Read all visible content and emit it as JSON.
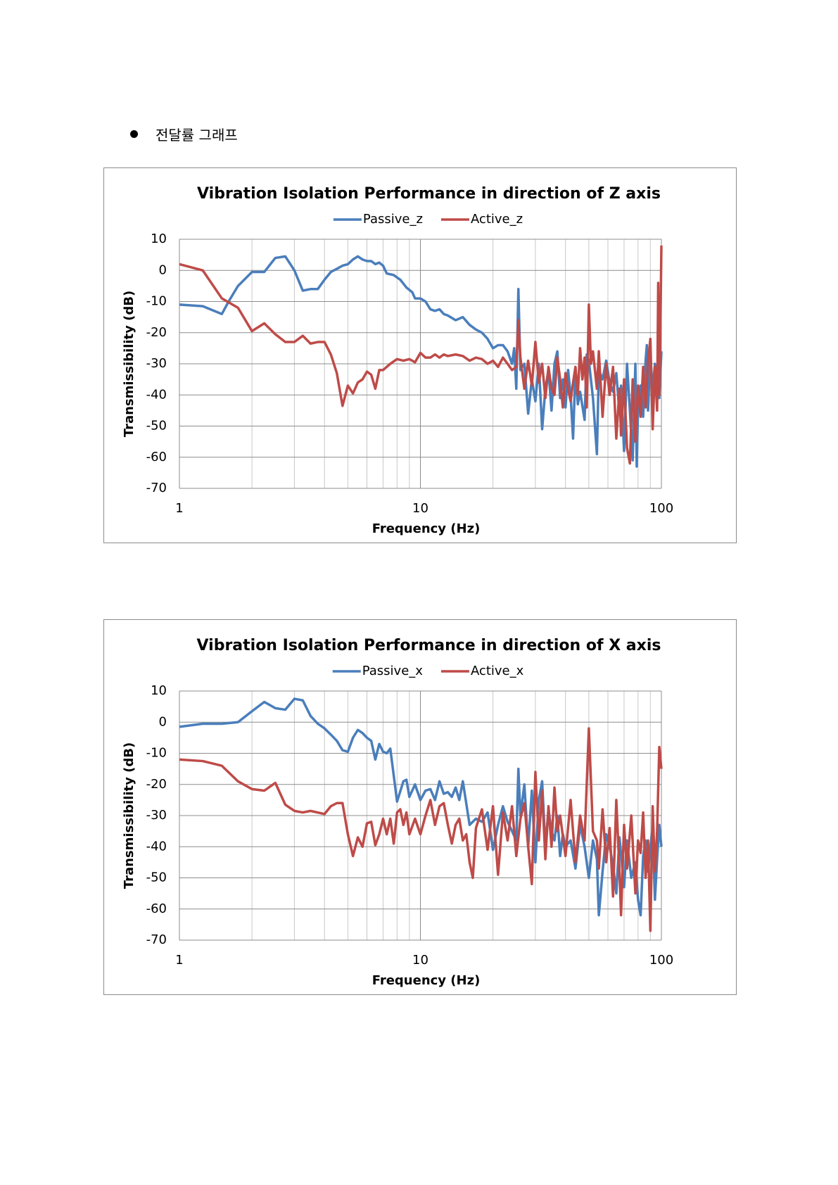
{
  "heading": "전달률 그래프",
  "chart_data": [
    {
      "type": "line",
      "title": "Vibration Isolation Performance in direction of Z axis",
      "x_label": "Frequency (Hz)",
      "y_label": "Transmissibility (dB)",
      "log_x": true,
      "grid": true,
      "minor_grid": true,
      "legend": "top",
      "xlim": [
        1,
        100
      ],
      "xticks": [
        1,
        10,
        100
      ],
      "ylim": [
        -70,
        10
      ],
      "yticks": [
        -70,
        -60,
        -50,
        -40,
        -30,
        -20,
        -10,
        0,
        10
      ],
      "series": [
        {
          "name": "Passive_z",
          "color": "#4a7ebb",
          "x": [
            1,
            1.25,
            1.5,
            1.6,
            1.75,
            2,
            2.25,
            2.5,
            2.75,
            3,
            3.25,
            3.5,
            3.75,
            4,
            4.25,
            4.5,
            4.75,
            5,
            5.25,
            5.5,
            5.75,
            6,
            6.25,
            6.5,
            6.75,
            7,
            7.25,
            7.75,
            8.25,
            8.75,
            9.25,
            9.5,
            10,
            10.5,
            11,
            11.5,
            12,
            12.5,
            13,
            14,
            15,
            16,
            17,
            18,
            19,
            20,
            21,
            22,
            23,
            24,
            24.5,
            25,
            25.5,
            26,
            27,
            28,
            29,
            30,
            31,
            32,
            33,
            34,
            35,
            36,
            37,
            38,
            39,
            40,
            41,
            42,
            43,
            44,
            45,
            46,
            48,
            49,
            50,
            52,
            54,
            55,
            57,
            59,
            61,
            63,
            65,
            67,
            68,
            70,
            72,
            74,
            76,
            78,
            79,
            80,
            82,
            84,
            86,
            87,
            88,
            90,
            92,
            94,
            96,
            98,
            100
          ],
          "values": [
            -11,
            -11.5,
            -14,
            -10,
            -5,
            -0.5,
            -0.5,
            4,
            4.5,
            0,
            -6.5,
            -6,
            -6,
            -3,
            -0.5,
            0.5,
            1.5,
            2,
            3.5,
            4.5,
            3.5,
            3,
            3,
            2,
            2.5,
            1.5,
            -1,
            -1.5,
            -3,
            -5.5,
            -7,
            -9,
            -9,
            -10,
            -12.5,
            -13,
            -12.5,
            -14,
            -14.5,
            -16,
            -15,
            -17.5,
            -19,
            -20,
            -22,
            -25,
            -24,
            -24,
            -26,
            -30,
            -25,
            -38,
            -6,
            -32,
            -30,
            -46,
            -35,
            -42,
            -30,
            -51,
            -38,
            -32,
            -45,
            -30,
            -26,
            -41,
            -35,
            -44,
            -32,
            -40,
            -54,
            -32,
            -43,
            -39,
            -48,
            -27,
            -29,
            -41,
            -59,
            -32,
            -35,
            -29,
            -36,
            -39,
            -33,
            -46,
            -37,
            -58,
            -30,
            -45,
            -61,
            -30,
            -63,
            -44,
            -37,
            -47,
            -29,
            -24,
            -45,
            -27,
            -39,
            -30,
            -33,
            -41,
            -26
          ]
        },
        {
          "name": "Active_z",
          "color": "#be4b48",
          "x": [
            1,
            1.25,
            1.5,
            1.75,
            2,
            2.25,
            2.5,
            2.75,
            3,
            3.25,
            3.5,
            3.75,
            4,
            4.25,
            4.5,
            4.75,
            5,
            5.25,
            5.5,
            5.75,
            6,
            6.25,
            6.5,
            6.75,
            7,
            7.5,
            8,
            8.5,
            9,
            9.5,
            10,
            10.5,
            11,
            11.5,
            12,
            12.5,
            13,
            14,
            15,
            16,
            17,
            18,
            19,
            20,
            21,
            22,
            23,
            24,
            25,
            25.5,
            26,
            27,
            28,
            29,
            30,
            31,
            32,
            33,
            34,
            35,
            36,
            37,
            38,
            39,
            40,
            41,
            42,
            43,
            44,
            45,
            46,
            47,
            48,
            49,
            50,
            51,
            52,
            54,
            55,
            57,
            59,
            61,
            63,
            65,
            67,
            68,
            70,
            72,
            74,
            76,
            78,
            80,
            82,
            84,
            86,
            88,
            90,
            92,
            94,
            96,
            97,
            98,
            99,
            100
          ],
          "values": [
            2,
            0,
            -9,
            -12,
            -19.5,
            -17,
            -20.5,
            -23,
            -23,
            -21,
            -23.5,
            -23,
            -23,
            -27,
            -33,
            -43.5,
            -37,
            -39.5,
            -36,
            -35,
            -32.5,
            -33.5,
            -38,
            -32,
            -32,
            -30,
            -28.5,
            -29,
            -28.5,
            -29.5,
            -26.5,
            -28,
            -28,
            -27,
            -28,
            -27,
            -27.5,
            -27,
            -27.5,
            -29,
            -28,
            -28.5,
            -30,
            -29,
            -31,
            -28,
            -30,
            -32,
            -31,
            -16,
            -28,
            -38,
            -29,
            -37,
            -23,
            -36,
            -30,
            -41,
            -31,
            -38,
            -40,
            -28,
            -35,
            -44,
            -33,
            -38,
            -42,
            -36,
            -31,
            -40,
            -25,
            -35,
            -28,
            -44,
            -11,
            -30,
            -26,
            -38,
            -26,
            -47,
            -30,
            -40,
            -31,
            -54,
            -38,
            -53,
            -35,
            -57,
            -62,
            -35,
            -55,
            -37,
            -47,
            -31,
            -44,
            -29,
            -22,
            -51,
            -31,
            -45,
            -4,
            -40,
            -20,
            8
          ]
        }
      ]
    },
    {
      "type": "line",
      "title": "Vibration Isolation Performance in direction of X axis",
      "x_label": "Frequency (Hz)",
      "y_label": "Transmissibility (dB)",
      "log_x": true,
      "grid": true,
      "minor_grid": true,
      "legend": "top",
      "xlim": [
        1,
        100
      ],
      "xticks": [
        1,
        10,
        100
      ],
      "ylim": [
        -70,
        10
      ],
      "yticks": [
        -70,
        -60,
        -50,
        -40,
        -30,
        -20,
        -10,
        0,
        10
      ],
      "series": [
        {
          "name": "Passive_x",
          "color": "#4a7ebb",
          "x": [
            1,
            1.25,
            1.5,
            1.75,
            2,
            2.25,
            2.5,
            2.75,
            3,
            3.25,
            3.5,
            3.75,
            4,
            4.25,
            4.5,
            4.75,
            5,
            5.25,
            5.5,
            5.75,
            6,
            6.25,
            6.5,
            6.75,
            7,
            7.25,
            7.5,
            8,
            8.5,
            8.75,
            9,
            9.5,
            10,
            10.5,
            11,
            11.5,
            12,
            12.5,
            13,
            13.5,
            14,
            14.5,
            15,
            16,
            17,
            18,
            19,
            20,
            21,
            22,
            23,
            24,
            25,
            25.5,
            26,
            27,
            28,
            29,
            30,
            31,
            32,
            33,
            34,
            35,
            36,
            37,
            38,
            39,
            40,
            42,
            44,
            46,
            48,
            50,
            52,
            54,
            55,
            57,
            59,
            61,
            63,
            65,
            67,
            70,
            72,
            75,
            78,
            80,
            82,
            84,
            86,
            88,
            90,
            92,
            94,
            96,
            98,
            100
          ],
          "values": [
            -1.5,
            -0.5,
            -0.5,
            0,
            3.5,
            6.5,
            4.5,
            4,
            7.5,
            7,
            2,
            -0.5,
            -2,
            -4,
            -6,
            -9,
            -9.5,
            -5,
            -2.5,
            -3.5,
            -5,
            -6,
            -12,
            -7,
            -9.5,
            -10,
            -8.5,
            -25.5,
            -19,
            -18.5,
            -24,
            -20,
            -25,
            -22,
            -21.5,
            -25,
            -19,
            -23,
            -22.5,
            -24,
            -21,
            -25,
            -19,
            -33,
            -31,
            -32,
            -29,
            -41,
            -33,
            -27,
            -32,
            -35,
            -38,
            -15,
            -30,
            -20,
            -40,
            -22,
            -45,
            -25,
            -19,
            -40,
            -28,
            -35,
            -38,
            -30,
            -43,
            -36,
            -40,
            -38,
            -47,
            -33,
            -40,
            -50,
            -38,
            -44,
            -62,
            -48,
            -36,
            -40,
            -46,
            -55,
            -37,
            -53,
            -38,
            -50,
            -45,
            -57,
            -62,
            -43,
            -38,
            -48,
            -40,
            -34,
            -57,
            -44,
            -33,
            -40
          ]
        },
        {
          "name": "Active_x",
          "color": "#be4b48",
          "x": [
            1,
            1.25,
            1.5,
            1.75,
            2,
            2.25,
            2.5,
            2.75,
            3,
            3.25,
            3.5,
            4,
            4.25,
            4.5,
            4.75,
            5,
            5.25,
            5.5,
            5.75,
            6,
            6.25,
            6.5,
            6.75,
            7,
            7.25,
            7.5,
            7.75,
            8,
            8.25,
            8.5,
            8.75,
            9,
            9.5,
            10,
            10.5,
            11,
            11.5,
            12,
            12.5,
            13,
            13.5,
            14,
            14.5,
            15,
            15.5,
            16,
            16.5,
            17,
            18,
            19,
            20,
            21,
            22,
            23,
            24,
            25,
            26,
            27,
            28,
            29,
            30,
            31,
            32,
            33,
            34,
            35,
            36,
            37,
            38,
            40,
            42,
            44,
            46,
            48,
            50,
            52,
            54,
            55,
            57,
            59,
            61,
            63,
            65,
            67,
            68,
            70,
            72,
            75,
            78,
            80,
            82,
            84,
            86,
            88,
            90,
            92,
            94,
            96,
            98,
            100
          ],
          "values": [
            -12,
            -12.5,
            -14,
            -19,
            -21.5,
            -22,
            -19.5,
            -26.5,
            -28.5,
            -29,
            -28.5,
            -29.5,
            -27,
            -26,
            -26,
            -36,
            -43,
            -37,
            -40,
            -32.5,
            -32,
            -39.5,
            -36,
            -31,
            -36,
            -31,
            -39,
            -29,
            -28,
            -33,
            -29,
            -36,
            -31,
            -36,
            -30,
            -25,
            -33,
            -27,
            -26,
            -33,
            -39,
            -33,
            -31,
            -38,
            -36,
            -45,
            -50,
            -34,
            -28,
            -41,
            -27,
            -49,
            -29,
            -38,
            -27,
            -43,
            -31,
            -26,
            -40,
            -52,
            -16,
            -38,
            -22,
            -44,
            -27,
            -40,
            -21,
            -35,
            -30,
            -43,
            -25,
            -45,
            -30,
            -38,
            -2,
            -35,
            -38,
            -47,
            -28,
            -45,
            -34,
            -56,
            -25,
            -48,
            -62,
            -33,
            -47,
            -30,
            -55,
            -38,
            -42,
            -29,
            -50,
            -38,
            -67,
            -27,
            -48,
            -35,
            -8,
            -15
          ]
        }
      ]
    }
  ]
}
